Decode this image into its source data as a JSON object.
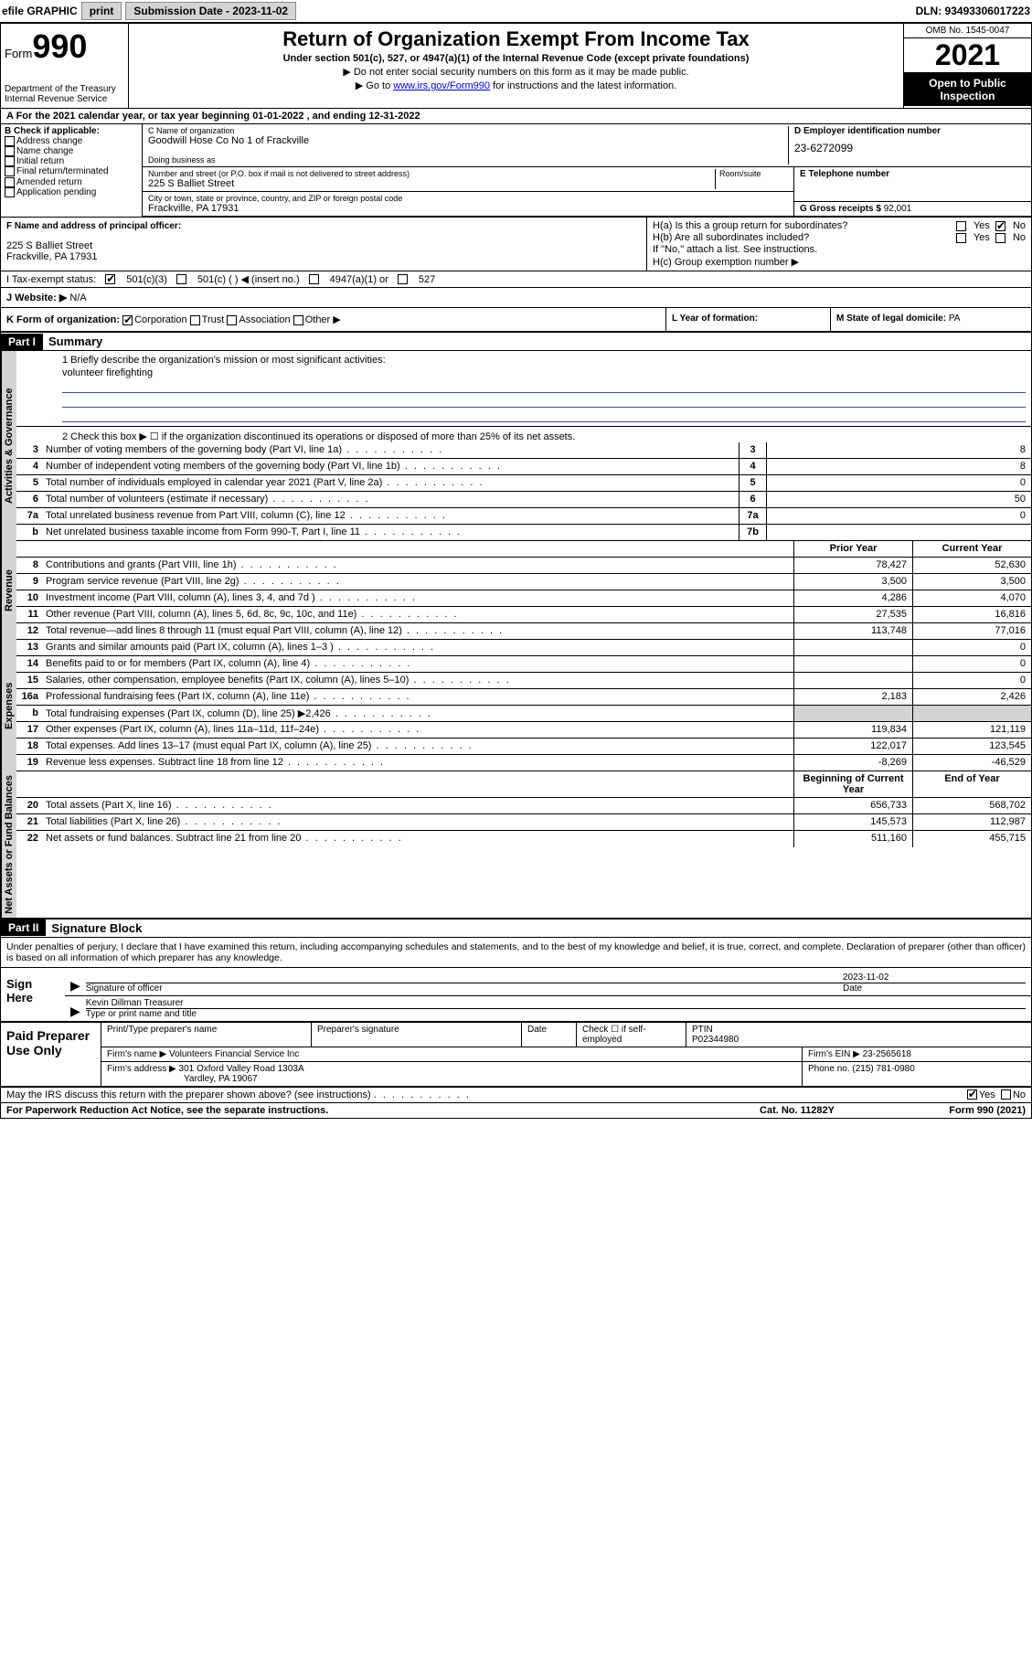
{
  "colors": {
    "topbar_btn_bg": "#d4d4d4",
    "black": "#000000",
    "white": "#ffffff",
    "link": "#0000cc",
    "underline_blue": "#3050a0",
    "shade": "#d4d4d4"
  },
  "topbar": {
    "efile_label": "efile GRAPHIC",
    "print_btn": "print",
    "submission_label": "Submission Date - 2023-11-02",
    "dln_label": "DLN: 93493306017223"
  },
  "header": {
    "form_label": "Form",
    "form_number": "990",
    "dept": "Department of the Treasury",
    "irs": "Internal Revenue Service",
    "title": "Return of Organization Exempt From Income Tax",
    "subtitle": "Under section 501(c), 527, or 4947(a)(1) of the Internal Revenue Code (except private foundations)",
    "note1": "▶ Do not enter social security numbers on this form as it may be made public.",
    "note2_pre": "▶ Go to ",
    "note2_link": "www.irs.gov/Form990",
    "note2_post": " for instructions and the latest information.",
    "omb": "OMB No. 1545-0047",
    "year": "2021",
    "inspection": "Open to Public Inspection"
  },
  "row_a": "A For the 2021 calendar year, or tax year beginning 01-01-2022    , and ending 12-31-2022",
  "col_b": {
    "header": "B Check if applicable:",
    "items": [
      "Address change",
      "Name change",
      "Initial return",
      "Final return/terminated",
      "Amended return",
      "Application pending"
    ]
  },
  "col_c": {
    "name_label": "C Name of organization",
    "name": "Goodwill Hose Co No 1 of Frackville",
    "dba_label": "Doing business as",
    "dba": "",
    "addr_label": "Number and street (or P.O. box if mail is not delivered to street address)",
    "room_label": "Room/suite",
    "addr": "225 S Balliet Street",
    "city_label": "City or town, state or province, country, and ZIP or foreign postal code",
    "city": "Frackville, PA  17931"
  },
  "col_d": {
    "label": "D Employer identification number",
    "value": "23-6272099"
  },
  "col_e": {
    "label": "E Telephone number",
    "value": ""
  },
  "col_g": {
    "label": "G Gross receipts $",
    "value": "92,001"
  },
  "col_f": {
    "label": "F Name and address of principal officer:",
    "line1": "225 S Balliet Street",
    "line2": "Frackville, PA  17931"
  },
  "col_h": {
    "ha_label": "H(a)  Is this a group return for subordinates?",
    "ha_yes": "Yes",
    "ha_no": "No",
    "hb_label": "H(b)  Are all subordinates included?",
    "hb_yes": "Yes",
    "hb_no": "No",
    "hb_note": "If \"No,\" attach a list. See instructions.",
    "hc_label": "H(c)  Group exemption number ▶"
  },
  "row_i": {
    "label": "I   Tax-exempt status:",
    "opts": [
      "501(c)(3)",
      "501(c) (   ) ◀ (insert no.)",
      "4947(a)(1) or",
      "527"
    ],
    "checked": 0
  },
  "row_j": {
    "label": "J   Website: ▶",
    "value": "N/A"
  },
  "row_k": {
    "label": "K Form of organization:",
    "opts": [
      "Corporation",
      "Trust",
      "Association",
      "Other ▶"
    ],
    "checked": 0
  },
  "row_l": {
    "label": "L Year of formation:",
    "value": ""
  },
  "row_m": {
    "label": "M State of legal domicile:",
    "value": "PA"
  },
  "parts": {
    "p1_hdr": "Part I",
    "p1_title": "Summary",
    "p2_hdr": "Part II",
    "p2_title": "Signature Block"
  },
  "summary": {
    "q1_label": "1   Briefly describe the organization's mission or most significant activities:",
    "q1_answer": "volunteer firefighting",
    "q2_label": "2   Check this box ▶ ☐  if the organization discontinued its operations or disposed of more than 25% of its net assets."
  },
  "vtabs": {
    "governance": "Activities & Governance",
    "revenue": "Revenue",
    "expenses": "Expenses",
    "netassets": "Net Assets or Fund Balances"
  },
  "governance_lines": [
    {
      "num": "3",
      "desc": "Number of voting members of the governing body (Part VI, line 1a)",
      "box": "3",
      "val": "8"
    },
    {
      "num": "4",
      "desc": "Number of independent voting members of the governing body (Part VI, line 1b)",
      "box": "4",
      "val": "8"
    },
    {
      "num": "5",
      "desc": "Total number of individuals employed in calendar year 2021 (Part V, line 2a)",
      "box": "5",
      "val": "0"
    },
    {
      "num": "6",
      "desc": "Total number of volunteers (estimate if necessary)",
      "box": "6",
      "val": "50"
    },
    {
      "num": "7a",
      "desc": "Total unrelated business revenue from Part VIII, column (C), line 12",
      "box": "7a",
      "val": "0"
    },
    {
      "num": "b",
      "desc": "Net unrelated business taxable income from Form 990-T, Part I, line 11",
      "box": "7b",
      "val": ""
    }
  ],
  "two_col_header": {
    "prior": "Prior Year",
    "current": "Current Year",
    "boy": "Beginning of Current Year",
    "eoy": "End of Year"
  },
  "revenue_lines": [
    {
      "num": "8",
      "desc": "Contributions and grants (Part VIII, line 1h)",
      "p": "78,427",
      "c": "52,630"
    },
    {
      "num": "9",
      "desc": "Program service revenue (Part VIII, line 2g)",
      "p": "3,500",
      "c": "3,500"
    },
    {
      "num": "10",
      "desc": "Investment income (Part VIII, column (A), lines 3, 4, and 7d )",
      "p": "4,286",
      "c": "4,070"
    },
    {
      "num": "11",
      "desc": "Other revenue (Part VIII, column (A), lines 5, 6d, 8c, 9c, 10c, and 11e)",
      "p": "27,535",
      "c": "16,816"
    },
    {
      "num": "12",
      "desc": "Total revenue—add lines 8 through 11 (must equal Part VIII, column (A), line 12)",
      "p": "113,748",
      "c": "77,016"
    }
  ],
  "expense_lines": [
    {
      "num": "13",
      "desc": "Grants and similar amounts paid (Part IX, column (A), lines 1–3 )",
      "p": "",
      "c": "0"
    },
    {
      "num": "14",
      "desc": "Benefits paid to or for members (Part IX, column (A), line 4)",
      "p": "",
      "c": "0"
    },
    {
      "num": "15",
      "desc": "Salaries, other compensation, employee benefits (Part IX, column (A), lines 5–10)",
      "p": "",
      "c": "0"
    },
    {
      "num": "16a",
      "desc": "Professional fundraising fees (Part IX, column (A), line 11e)",
      "p": "2,183",
      "c": "2,426"
    },
    {
      "num": "b",
      "desc": "Total fundraising expenses (Part IX, column (D), line 25) ▶2,426",
      "p": "SHADE",
      "c": "SHADE"
    },
    {
      "num": "17",
      "desc": "Other expenses (Part IX, column (A), lines 11a–11d, 11f–24e)",
      "p": "119,834",
      "c": "121,119"
    },
    {
      "num": "18",
      "desc": "Total expenses. Add lines 13–17 (must equal Part IX, column (A), line 25)",
      "p": "122,017",
      "c": "123,545"
    },
    {
      "num": "19",
      "desc": "Revenue less expenses. Subtract line 18 from line 12",
      "p": "-8,269",
      "c": "-46,529"
    }
  ],
  "netasset_lines": [
    {
      "num": "20",
      "desc": "Total assets (Part X, line 16)",
      "p": "656,733",
      "c": "568,702"
    },
    {
      "num": "21",
      "desc": "Total liabilities (Part X, line 26)",
      "p": "145,573",
      "c": "112,987"
    },
    {
      "num": "22",
      "desc": "Net assets or fund balances. Subtract line 21 from line 20",
      "p": "511,160",
      "c": "455,715"
    }
  ],
  "sig_intro": "Under penalties of perjury, I declare that I have examined this return, including accompanying schedules and statements, and to the best of my knowledge and belief, it is true, correct, and complete. Declaration of preparer (other than officer) is based on all information of which preparer has any knowledge.",
  "sign_here": {
    "label": "Sign Here",
    "sig_officer": "Signature of officer",
    "date_label": "Date",
    "date_value": "2023-11-02",
    "name_title": "Kevin Dillman  Treasurer",
    "name_label": "Type or print name and title"
  },
  "paid": {
    "label": "Paid Preparer Use Only",
    "h_name": "Print/Type preparer's name",
    "h_sig": "Preparer's signature",
    "h_date": "Date",
    "h_check": "Check ☐ if self-employed",
    "h_ptin_label": "PTIN",
    "h_ptin": "P02344980",
    "firm_name_label": "Firm's name    ▶",
    "firm_name": "Volunteers Financial Service Inc",
    "firm_ein_label": "Firm's EIN ▶",
    "firm_ein": "23-2565618",
    "firm_addr_label": "Firm's address ▶",
    "firm_addr1": "301 Oxford Valley Road 1303A",
    "firm_addr2": "Yardley, PA  19067",
    "phone_label": "Phone no.",
    "phone": "(215) 781-0980"
  },
  "footer": {
    "discuss": "May the IRS discuss this return with the preparer shown above? (see instructions)",
    "yes": "Yes",
    "no": "No",
    "paperwork": "For Paperwork Reduction Act Notice, see the separate instructions.",
    "cat": "Cat. No. 11282Y",
    "form": "Form 990 (2021)"
  }
}
